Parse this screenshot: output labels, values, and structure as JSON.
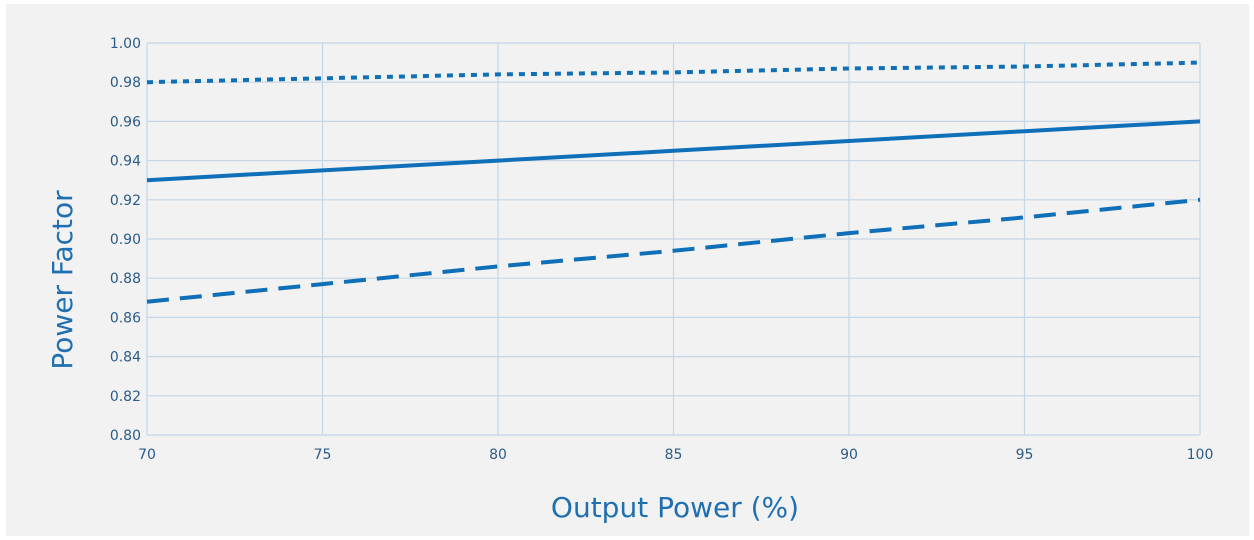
{
  "colors": {
    "background": "#f2f2f2",
    "grid": "#c5d6e6",
    "series": "#0f6fb8",
    "tick_text": "#2a5c8c",
    "axis_label": "#1f6fb2"
  },
  "chart_data": {
    "type": "line",
    "xlabel": "Output Power (%)",
    "ylabel": "Power Factor",
    "xlim": [
      70,
      100
    ],
    "ylim": [
      0.8,
      1.0
    ],
    "xticks": [
      70,
      75,
      80,
      85,
      90,
      95,
      100
    ],
    "yticks": [
      0.8,
      0.82,
      0.84,
      0.86,
      0.88,
      0.9,
      0.92,
      0.94,
      0.96,
      0.98,
      1.0
    ],
    "grid": true,
    "series": [
      {
        "style": "dotted",
        "x": [
          70,
          75,
          80,
          85,
          90,
          95,
          100
        ],
        "y": [
          0.98,
          0.982,
          0.984,
          0.985,
          0.987,
          0.988,
          0.99
        ]
      },
      {
        "style": "solid",
        "x": [
          70,
          75,
          80,
          85,
          90,
          95,
          100
        ],
        "y": [
          0.93,
          0.935,
          0.94,
          0.945,
          0.95,
          0.955,
          0.96
        ]
      },
      {
        "style": "dashed",
        "x": [
          70,
          75,
          80,
          85,
          90,
          95,
          100
        ],
        "y": [
          0.868,
          0.877,
          0.886,
          0.894,
          0.903,
          0.911,
          0.92
        ]
      }
    ]
  }
}
